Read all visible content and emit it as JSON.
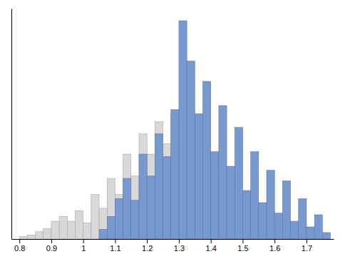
{
  "chart_data": {
    "type": "histogram",
    "series": [
      {
        "color": "#d8d8d8",
        "bins": [
          0.8,
          0.825,
          0.85,
          0.875,
          0.9,
          0.925,
          0.95,
          0.975,
          1.0,
          1.025,
          1.05,
          1.075,
          1.1,
          1.125,
          1.15,
          1.175,
          1.2,
          1.225,
          1.25,
          1.275,
          1.3
        ],
        "values": [
          3,
          5,
          9,
          13,
          22,
          28,
          22,
          35,
          20,
          55,
          38,
          75,
          55,
          105,
          78,
          130,
          105,
          145,
          118,
          155
        ]
      },
      {
        "color": "#7898d0",
        "bins": [
          1.05,
          1.075,
          1.1,
          1.125,
          1.15,
          1.175,
          1.2,
          1.225,
          1.25,
          1.275,
          1.3,
          1.325,
          1.35,
          1.375,
          1.4,
          1.425,
          1.45,
          1.475,
          1.5,
          1.525,
          1.55,
          1.575,
          1.6,
          1.625,
          1.65,
          1.675,
          1.7,
          1.725,
          1.75,
          1.775
        ],
        "values": [
          12,
          28,
          50,
          75,
          48,
          105,
          78,
          130,
          102,
          160,
          270,
          220,
          155,
          195,
          108,
          165,
          90,
          138,
          60,
          108,
          45,
          85,
          32,
          72,
          22,
          50,
          15,
          30,
          8
        ]
      }
    ],
    "xlim": [
      0.775,
      1.785
    ],
    "ylim": [
      0,
      285
    ],
    "xticks": [
      0.8,
      0.9,
      1,
      1.1,
      1.2,
      1.3,
      1.4,
      1.5,
      1.6,
      1.7
    ],
    "tick_labels": "x",
    "grid": false
  }
}
